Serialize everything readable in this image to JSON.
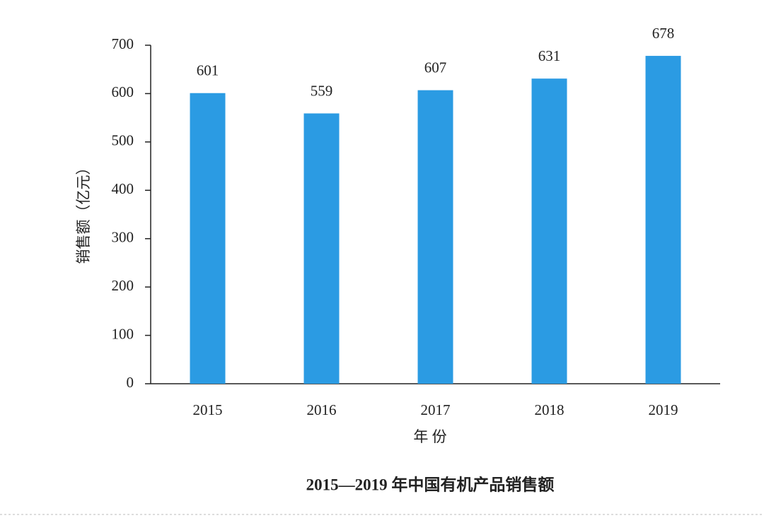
{
  "chart_data": {
    "type": "bar",
    "title": "2015—2019 年中国有机产品销售额",
    "x_label": "年 份",
    "y_label": "销售额（亿元）",
    "categories": [
      "2015",
      "2016",
      "2017",
      "2018",
      "2019"
    ],
    "values": [
      601,
      559,
      607,
      631,
      678
    ],
    "color": "#2b9be3",
    "ylim": [
      0,
      700
    ],
    "yticks": [
      0,
      100,
      200,
      300,
      400,
      500,
      600,
      700
    ],
    "grid": false
  }
}
